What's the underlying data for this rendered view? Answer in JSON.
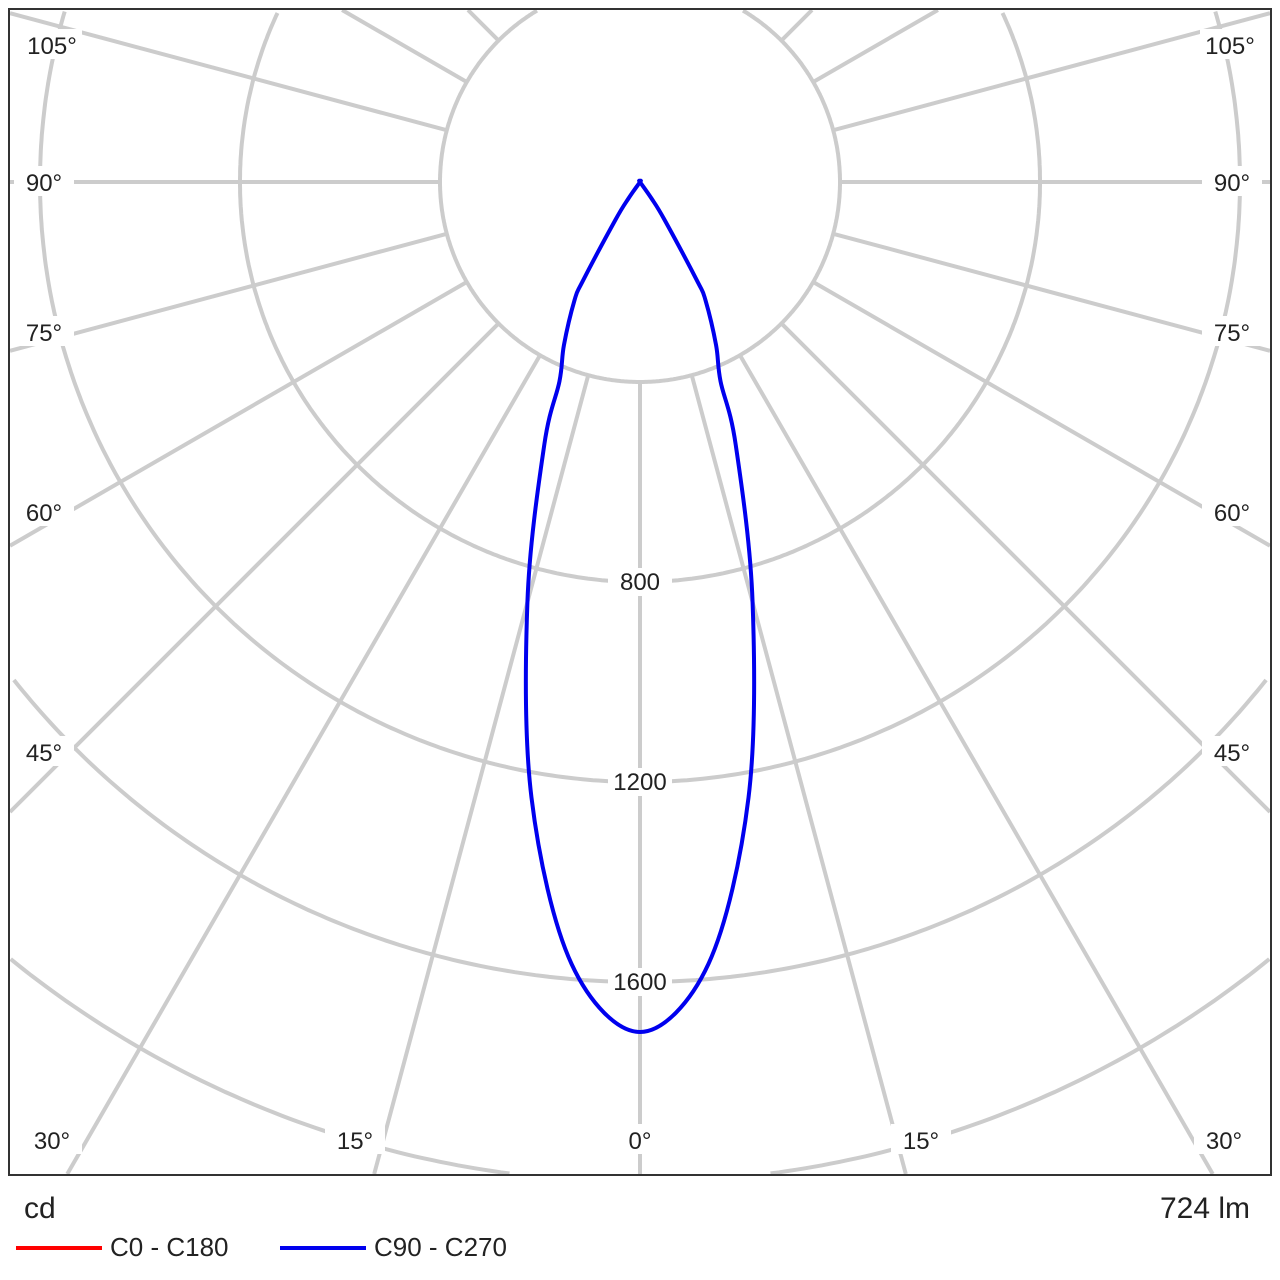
{
  "chart_data": {
    "type": "polar",
    "unit_label": "cd",
    "flux_label": "724 lm",
    "radial_ticks": [
      400,
      800,
      1200,
      1600,
      2000,
      2400
    ],
    "radial_tick_labels": [
      "800",
      "1200",
      "1600"
    ],
    "angle_labels": [
      "105°",
      "90°",
      "75°",
      "60°",
      "45°",
      "30°",
      "15°",
      "0°"
    ],
    "angle_step_deg": 15,
    "grid": true,
    "grid_color": "#cccccc",
    "series": [
      {
        "name": "C0 - C180",
        "color": "#ff0000",
        "angles": [],
        "values": []
      },
      {
        "name": "C90 - C270",
        "color": "#0000ee",
        "angles": [
          0,
          5,
          10,
          15,
          20,
          22,
          25,
          29,
          30,
          33,
          35,
          40,
          90
        ],
        "values": [
          1700,
          1570,
          1250,
          870,
          560,
          430,
          360,
          270,
          230,
          90,
          40,
          0,
          0
        ]
      }
    ],
    "legend_position": "bottom-left"
  }
}
